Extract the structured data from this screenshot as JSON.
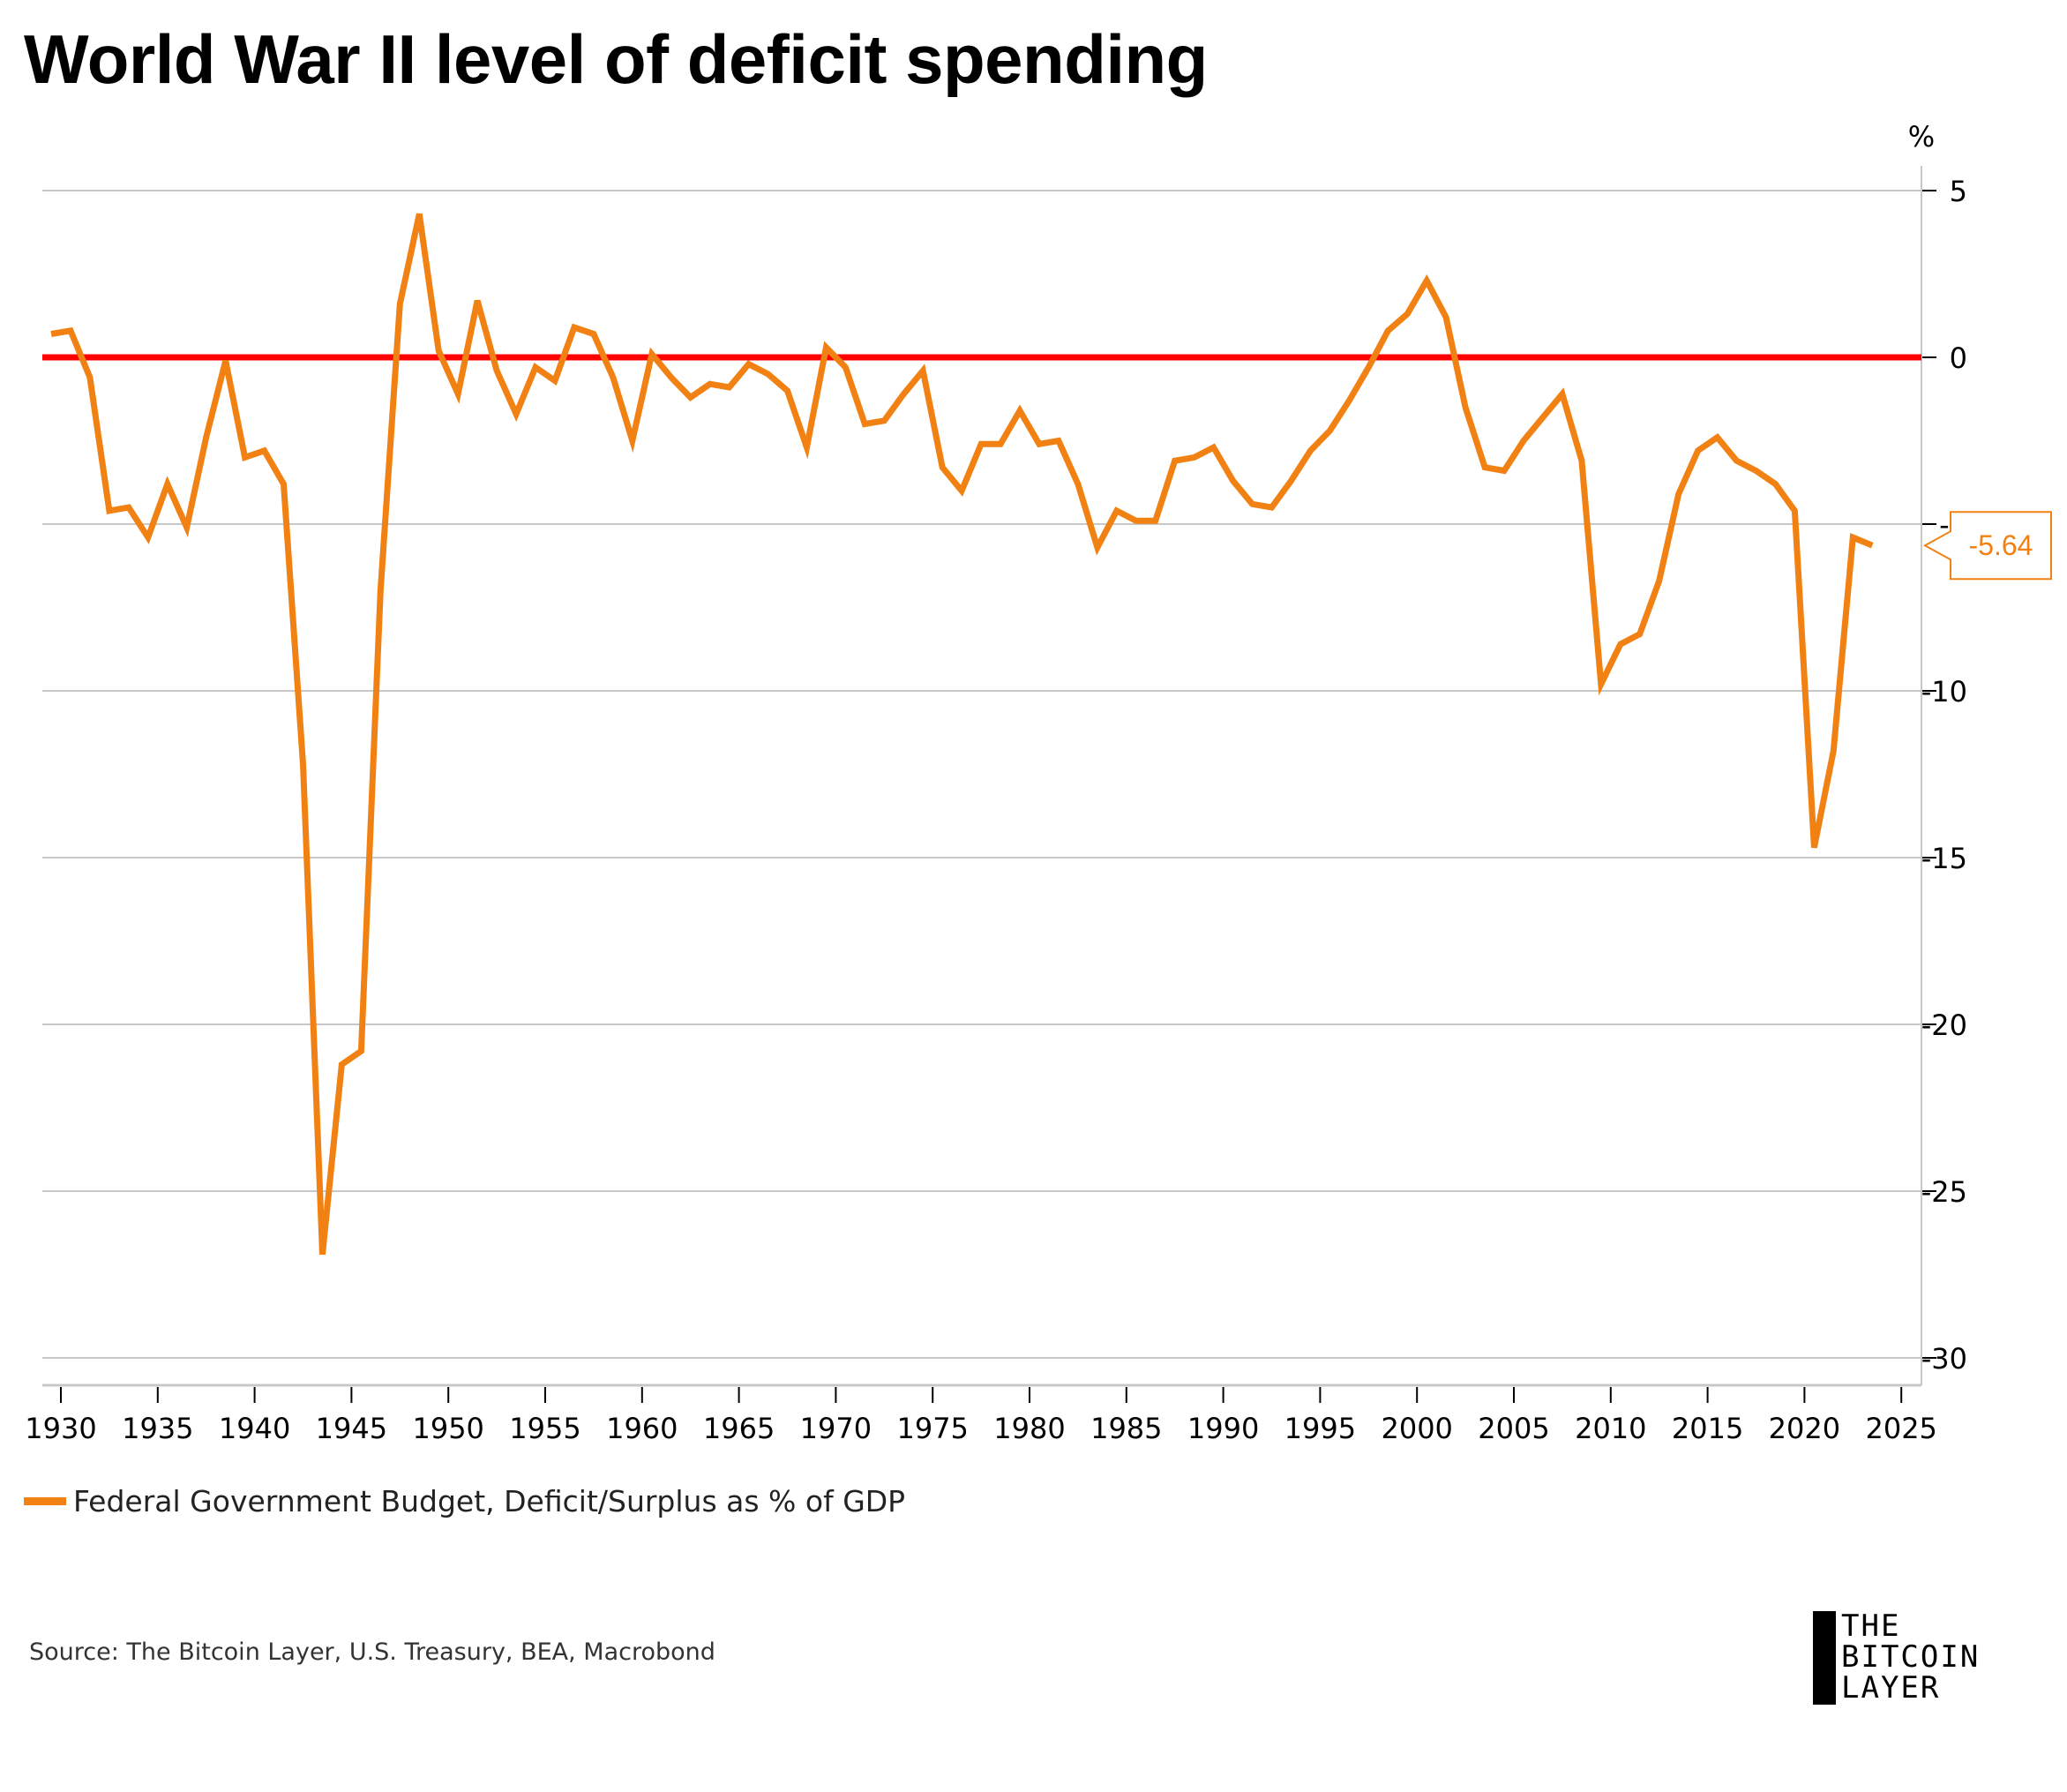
{
  "title": "World War II level of deficit spending",
  "legend": {
    "label": "Federal Government Budget, Deficit/Surplus as % of GDP",
    "color": "#f28113"
  },
  "source": "Source: The Bitcoin Layer, U.S. Treasury, BEA, Macrobond",
  "logo": {
    "line1": "THE",
    "line2": "BITCOIN",
    "line3": "LAYER"
  },
  "chart_data": {
    "type": "line",
    "title": "World War II level of deficit spending",
    "ylabel": "%",
    "xlabel": "",
    "xlim": [
      1929,
      2026
    ],
    "ylim": [
      -31,
      5.8
    ],
    "x_ticks": [
      1930,
      1935,
      1940,
      1945,
      1950,
      1955,
      1960,
      1965,
      1970,
      1975,
      1980,
      1985,
      1990,
      1995,
      2000,
      2005,
      2010,
      2015,
      2020,
      2025
    ],
    "y_ticks": [
      5,
      0,
      -5,
      -10,
      -15,
      -20,
      -25,
      -30
    ],
    "y_tick_labels": [
      "5",
      "0",
      "-5",
      "-10",
      "-15",
      "-20",
      "-25",
      "-30"
    ],
    "grid": true,
    "reference_line": {
      "value": 0,
      "color": "#ff0000"
    },
    "last_value_label": "-5.64",
    "series": [
      {
        "name": "Federal Government Budget, Deficit/Surplus as % of GDP",
        "color": "#f28113",
        "x_start": 1929,
        "values": [
          0.7,
          0.8,
          -0.6,
          -4.6,
          -4.5,
          -5.4,
          -3.8,
          -5.1,
          -2.4,
          -0.1,
          -3.0,
          -2.8,
          -3.8,
          -12.2,
          -26.9,
          -21.2,
          -20.8,
          -7.0,
          1.6,
          4.3,
          0.2,
          -1.1,
          1.7,
          -0.4,
          -1.7,
          -0.3,
          -0.7,
          0.9,
          0.7,
          -0.6,
          -2.5,
          0.1,
          -0.6,
          -1.2,
          -0.8,
          -0.9,
          -0.2,
          -0.5,
          -1.0,
          -2.7,
          0.3,
          -0.3,
          -2.0,
          -1.9,
          -1.1,
          -0.4,
          -3.3,
          -4.0,
          -2.6,
          -2.6,
          -1.6,
          -2.6,
          -2.5,
          -3.8,
          -5.7,
          -4.6,
          -4.9,
          -4.9,
          -3.1,
          -3.0,
          -2.7,
          -3.7,
          -4.4,
          -4.5,
          -3.7,
          -2.8,
          -2.2,
          -1.3,
          -0.3,
          0.8,
          1.3,
          2.3,
          1.2,
          -1.5,
          -3.3,
          -3.4,
          -2.5,
          -1.8,
          -1.1,
          -3.1,
          -9.8,
          -8.6,
          -8.3,
          -6.7,
          -4.1,
          -2.8,
          -2.4,
          -3.1,
          -3.4,
          -3.8,
          -4.6,
          -14.7,
          -11.8,
          -5.4,
          -5.64
        ]
      }
    ]
  }
}
